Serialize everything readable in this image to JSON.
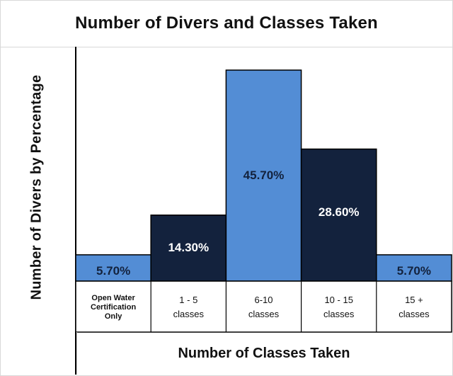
{
  "chart_data": {
    "type": "bar",
    "title": "Number of Divers and Classes Taken",
    "xlabel": "Number of Classes Taken",
    "ylabel": "Number of Divers by Percentage",
    "categories": [
      "Open Water Certification Only",
      "1 - 5 classes",
      "6-10 classes",
      "10 - 15 classes",
      "15 + classes"
    ],
    "category_lines": [
      [
        "Open Water",
        "Certification",
        "Only"
      ],
      [
        "1 - 5",
        "classes"
      ],
      [
        "6-10",
        "classes"
      ],
      [
        "10 - 15",
        "classes"
      ],
      [
        "15 +",
        "classes"
      ]
    ],
    "values": [
      5.7,
      14.3,
      45.7,
      28.6,
      5.7
    ],
    "value_labels": [
      "5.70%",
      "14.30%",
      "45.70%",
      "28.60%",
      "5.70%"
    ],
    "bar_colors": [
      "#538dd5",
      "#13223d",
      "#538dd5",
      "#13223d",
      "#538dd5"
    ],
    "label_colors": [
      "#13223d",
      "#ffffff",
      "#13223d",
      "#ffffff",
      "#13223d"
    ],
    "ylim": [
      0,
      45.7
    ],
    "grid": false,
    "legend": "none"
  }
}
